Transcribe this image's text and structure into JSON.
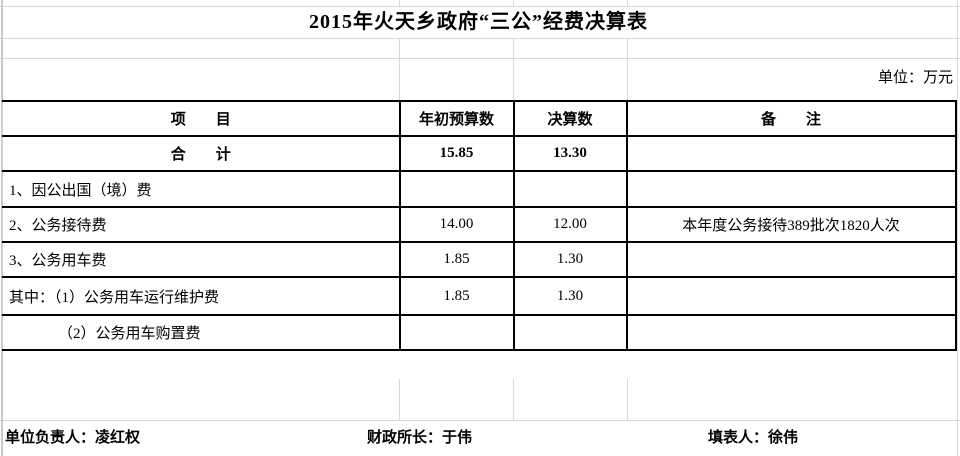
{
  "title": "2015年火天乡政府“三公”经费决算表",
  "unit_label": "单位：万元",
  "table": {
    "headers": [
      "项　　目",
      "年初预算数",
      "决算数",
      "备　　注"
    ],
    "rows": [
      {
        "item": "合　　计",
        "budget": "15.85",
        "final": "13.30",
        "remark": "",
        "bold": true,
        "center": true
      },
      {
        "item": "1、因公出国（境）费",
        "budget": "",
        "final": "",
        "remark": ""
      },
      {
        "item": "2、公务接待费",
        "budget": "14.00",
        "final": "12.00",
        "remark": "本年度公务接待389批次1820人次"
      },
      {
        "item": "3、公务用车费",
        "budget": "1.85",
        "final": "1.30",
        "remark": ""
      },
      {
        "item": "其中：（1）公务用车运行维护费",
        "budget": "1.85",
        "final": "1.30",
        "remark": ""
      },
      {
        "item": "（2）公务用车购置费",
        "budget": "",
        "final": "",
        "remark": "",
        "indent": true
      }
    ]
  },
  "footer": {
    "unit_head": "单位负责人：凌红权",
    "finance_head": "财政所长：于伟",
    "preparer": "填表人：徐伟"
  },
  "colors": {
    "table_border": "#000000",
    "gridline": "#d8d8d8",
    "text": "#000000",
    "background": "#ffffff"
  }
}
